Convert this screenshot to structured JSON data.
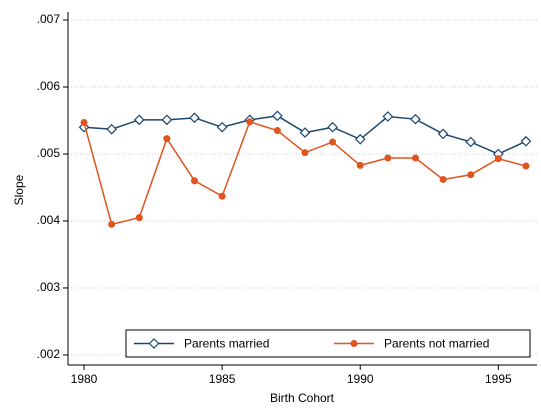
{
  "chart_data": {
    "type": "line",
    "x_label": "Birth Cohort",
    "y_label": "Slope",
    "x": [
      1980,
      1981,
      1982,
      1983,
      1984,
      1985,
      1986,
      1987,
      1988,
      1989,
      1990,
      1991,
      1992,
      1993,
      1994,
      1995,
      1996
    ],
    "series": [
      {
        "name": "Parents married",
        "color": "#1a476f",
        "marker": "diamond",
        "values": [
          0.0054,
          0.00537,
          0.00551,
          0.00551,
          0.00554,
          0.0054,
          0.00551,
          0.00557,
          0.00532,
          0.0054,
          0.00522,
          0.00556,
          0.00552,
          0.0053,
          0.00518,
          0.005,
          0.00519
        ]
      },
      {
        "name": "Parents not married",
        "color": "#e0541e",
        "marker": "circle",
        "values": [
          0.00547,
          0.00395,
          0.00405,
          0.00523,
          0.0046,
          0.00437,
          0.00548,
          0.00535,
          0.00502,
          0.00518,
          0.00483,
          0.00494,
          0.00494,
          0.00462,
          0.00469,
          0.00493,
          0.00482
        ]
      }
    ],
    "xlim": [
      1979.42,
      1996.4
    ],
    "xticks": [
      1980,
      1985,
      1990,
      1995
    ],
    "ylim": [
      0.00185,
      0.00712
    ],
    "yticks": [
      {
        "value": 0.002,
        "label": ".002"
      },
      {
        "value": 0.003,
        "label": ".003"
      },
      {
        "value": 0.004,
        "label": ".004"
      },
      {
        "value": 0.005,
        "label": ".005"
      },
      {
        "value": 0.006,
        "label": ".006"
      },
      {
        "value": 0.007,
        "label": ".007"
      }
    ],
    "grid": true,
    "legend_position": "bottom"
  }
}
